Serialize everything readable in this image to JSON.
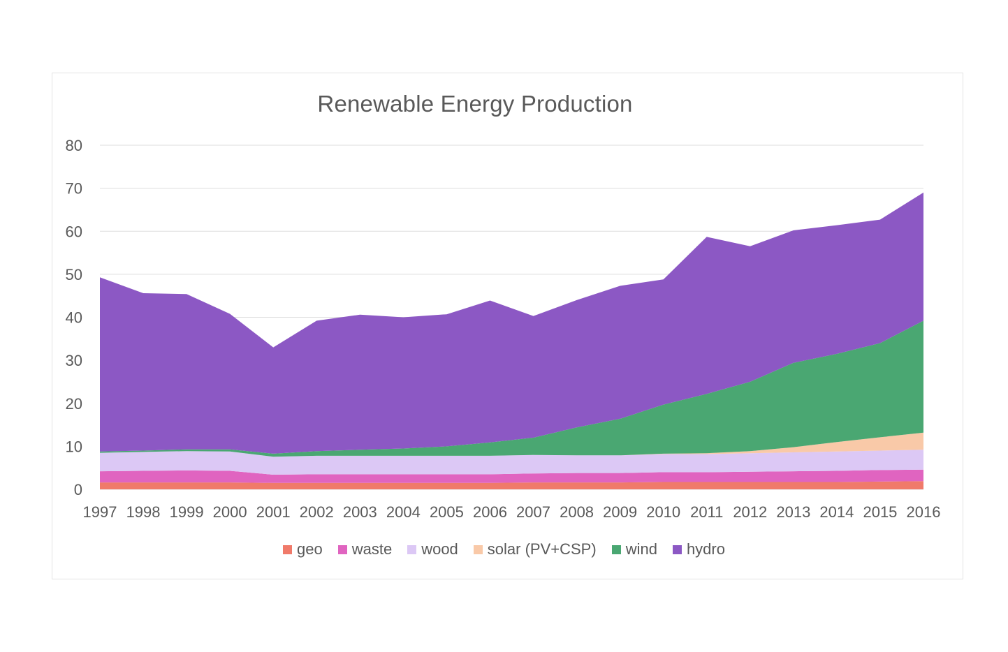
{
  "chart_data": {
    "type": "area",
    "stacked": true,
    "title": "Renewable Energy Production",
    "xlabel": "",
    "ylabel": "",
    "ylim": [
      0,
      80
    ],
    "yticks": [
      0,
      10,
      20,
      30,
      40,
      50,
      60,
      70,
      80
    ],
    "grid": true,
    "legend_position": "bottom",
    "categories": [
      "1997",
      "1998",
      "1999",
      "2000",
      "2001",
      "2002",
      "2003",
      "2004",
      "2005",
      "2006",
      "2007",
      "2008",
      "2009",
      "2010",
      "2011",
      "2012",
      "2013",
      "2014",
      "2015",
      "2016"
    ],
    "series": [
      {
        "name": "geo",
        "color": "#f07a6a",
        "values": [
          1.6,
          1.6,
          1.6,
          1.6,
          1.5,
          1.5,
          1.5,
          1.5,
          1.5,
          1.5,
          1.6,
          1.6,
          1.6,
          1.7,
          1.7,
          1.7,
          1.7,
          1.7,
          1.8,
          1.9
        ]
      },
      {
        "name": "waste",
        "color": "#e064c0",
        "values": [
          2.6,
          2.7,
          2.8,
          2.7,
          1.9,
          2.0,
          2.0,
          2.0,
          2.0,
          2.0,
          2.1,
          2.2,
          2.2,
          2.3,
          2.3,
          2.4,
          2.5,
          2.6,
          2.7,
          2.7
        ]
      },
      {
        "name": "wood",
        "color": "#dcc8f5",
        "values": [
          4.3,
          4.4,
          4.5,
          4.5,
          4.2,
          4.3,
          4.3,
          4.3,
          4.3,
          4.3,
          4.3,
          4.1,
          4.1,
          4.2,
          4.2,
          4.3,
          4.4,
          4.5,
          4.5,
          4.6
        ]
      },
      {
        "name": "solar (PV+CSP)",
        "color": "#f9c9a8",
        "values": [
          0,
          0,
          0,
          0,
          0,
          0,
          0,
          0,
          0,
          0,
          0,
          0,
          0,
          0.1,
          0.2,
          0.5,
          1.2,
          2.2,
          3.1,
          4.0
        ]
      },
      {
        "name": "wind",
        "color": "#4aa772",
        "values": [
          0.3,
          0.3,
          0.4,
          0.5,
          0.7,
          1.1,
          1.4,
          1.7,
          2.2,
          3.1,
          4.0,
          6.5,
          8.5,
          11.4,
          13.8,
          16.1,
          19.6,
          20.5,
          21.9,
          26.0
        ]
      },
      {
        "name": "hydro",
        "color": "#8c58c4",
        "values": [
          40.5,
          36.6,
          36.1,
          31.5,
          24.7,
          30.3,
          31.4,
          30.5,
          30.7,
          33.0,
          28.3,
          29.6,
          30.9,
          29.1,
          36.5,
          31.5,
          30.8,
          29.9,
          28.7,
          29.8
        ]
      }
    ]
  }
}
